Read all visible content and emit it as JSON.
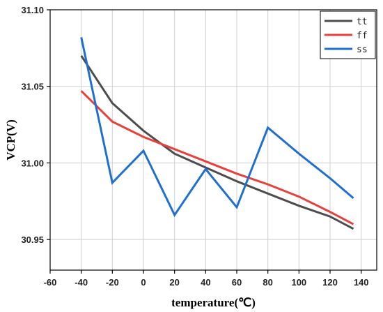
{
  "chart_data": {
    "type": "line",
    "xlabel": "temperature(℃)",
    "ylabel": "VCP(V)",
    "xlim": [
      -60,
      150
    ],
    "ylim": [
      30.93,
      31.1
    ],
    "xticks": [
      -60,
      -40,
      -20,
      0,
      20,
      40,
      60,
      80,
      100,
      120,
      140
    ],
    "yticks": [
      30.95,
      31.0,
      31.05,
      31.1
    ],
    "ytick_labels": [
      "30.95",
      "31.00",
      "31.05",
      "31.10"
    ],
    "grid": true,
    "legend_position": "top-right",
    "series": [
      {
        "name": "tt",
        "color": "#4d4d4d",
        "x": [
          -40,
          -20,
          0,
          20,
          40,
          60,
          80,
          100,
          120,
          135
        ],
        "y": [
          31.07,
          31.039,
          31.021,
          31.006,
          30.997,
          30.988,
          30.98,
          30.972,
          30.965,
          30.957
        ]
      },
      {
        "name": "ff",
        "color": "#e8413c",
        "x": [
          -40,
          -20,
          0,
          20,
          40,
          60,
          80,
          100,
          120,
          135
        ],
        "y": [
          31.047,
          31.027,
          31.017,
          31.009,
          31.001,
          30.993,
          30.986,
          30.978,
          30.968,
          30.96
        ]
      },
      {
        "name": "ss",
        "color": "#1f6fd1",
        "x": [
          -40,
          -20,
          0,
          20,
          40,
          60,
          80,
          100,
          120,
          135
        ],
        "y": [
          31.082,
          30.987,
          31.008,
          30.966,
          30.996,
          30.971,
          31.023,
          31.006,
          30.99,
          30.977
        ]
      }
    ]
  }
}
